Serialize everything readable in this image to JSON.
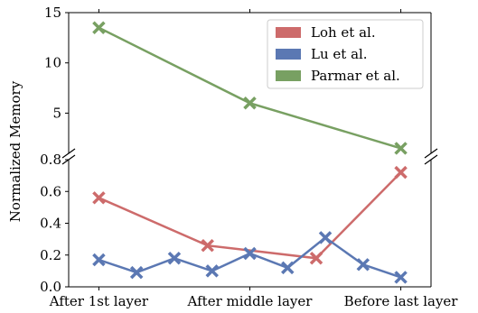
{
  "chart_data": {
    "type": "line",
    "ylabel": "Normalized Memory",
    "xlabel": "",
    "broken_y_axis": true,
    "top_panel": {
      "ylim": [
        1.0,
        15
      ],
      "yticks": [
        5,
        10,
        15
      ],
      "ytick_labels": [
        "5",
        "10",
        "15"
      ]
    },
    "bottom_panel": {
      "ylim": [
        0.0,
        0.8
      ],
      "yticks": [
        0.0,
        0.2,
        0.4,
        0.6,
        0.8
      ],
      "ytick_labels": [
        "0.0",
        "0.2",
        "0.4",
        "0.6",
        "0.8"
      ]
    },
    "xlim": [
      -0.1,
      1.1
    ],
    "xticks": [
      0,
      0.5,
      1.0
    ],
    "xtick_labels": [
      "After 1st layer",
      "After middle layer",
      "Before last layer"
    ],
    "legend_position": "top-right",
    "grid": false,
    "series": [
      {
        "name": "Loh et al.",
        "color": "#cd6b6b",
        "panel": "bottom",
        "x": [
          0,
          0.36,
          0.72,
          1.0
        ],
        "y": [
          0.56,
          0.26,
          0.18,
          0.72
        ]
      },
      {
        "name": "Lu et al.",
        "color": "#5b78b3",
        "panel": "bottom",
        "x": [
          0,
          0.125,
          0.25,
          0.375,
          0.5,
          0.625,
          0.75,
          0.875,
          1.0
        ],
        "y": [
          0.17,
          0.09,
          0.18,
          0.1,
          0.21,
          0.12,
          0.31,
          0.14,
          0.06
        ]
      },
      {
        "name": "Parmar et al.",
        "color": "#78a062",
        "panel": "top",
        "x": [
          0,
          0.5,
          1.0
        ],
        "y": [
          13.5,
          6.0,
          1.5
        ]
      }
    ]
  }
}
